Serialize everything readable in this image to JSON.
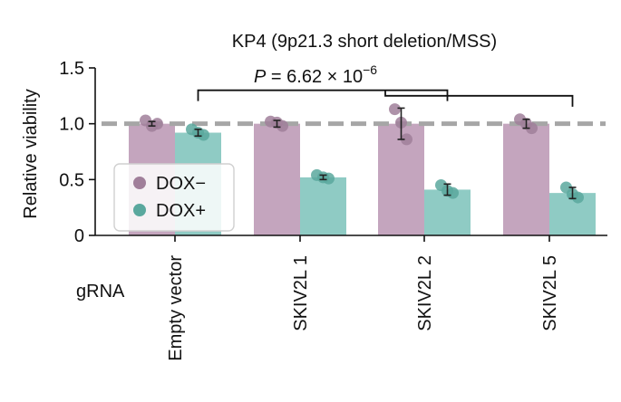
{
  "chart_data": {
    "type": "bar",
    "title": "KP4 (9p21.3 short deletion/MSS)",
    "ylabel": "Relative viability",
    "xlabel": "gRNA",
    "ylim": [
      0,
      1.5
    ],
    "yticks": [
      "0",
      "0.5",
      "1.0",
      "1.5"
    ],
    "reference_line": 1.0,
    "categories": [
      "Empty vector",
      "SKIV2L 1",
      "SKIV2L 2",
      "SKIV2L 5"
    ],
    "series": [
      {
        "name": "DOX−",
        "color": "#c4a5be",
        "point_color": "#a07f9a",
        "values": [
          1.0,
          1.0,
          1.0,
          1.0
        ],
        "errors": [
          0.02,
          0.03,
          0.14,
          0.04
        ],
        "points": [
          [
            1.03,
            1.0,
            0.98
          ],
          [
            1.02,
            0.98,
            1.01
          ],
          [
            1.13,
            0.86,
            1.01
          ],
          [
            1.04,
            0.96,
            1.0
          ]
        ]
      },
      {
        "name": "DOX+",
        "color": "#8fcbc4",
        "point_color": "#5aa89e",
        "values": [
          0.92,
          0.52,
          0.41,
          0.38
        ],
        "errors": [
          0.03,
          0.02,
          0.05,
          0.05
        ],
        "points": [
          [
            0.95,
            0.9,
            0.92
          ],
          [
            0.54,
            0.51,
            0.52
          ],
          [
            0.45,
            0.38,
            0.4
          ],
          [
            0.43,
            0.34,
            0.37
          ]
        ]
      }
    ],
    "significance": {
      "label_prefix": "P",
      "label_rest": " = 6.62 × 10",
      "label_exp": "−6",
      "bracket_targets": [
        "SKIV2L 1",
        "SKIV2L 2",
        "SKIV2L 5"
      ]
    },
    "legend": {
      "position": "lower-left",
      "entries": [
        "DOX−",
        "DOX+"
      ]
    }
  }
}
